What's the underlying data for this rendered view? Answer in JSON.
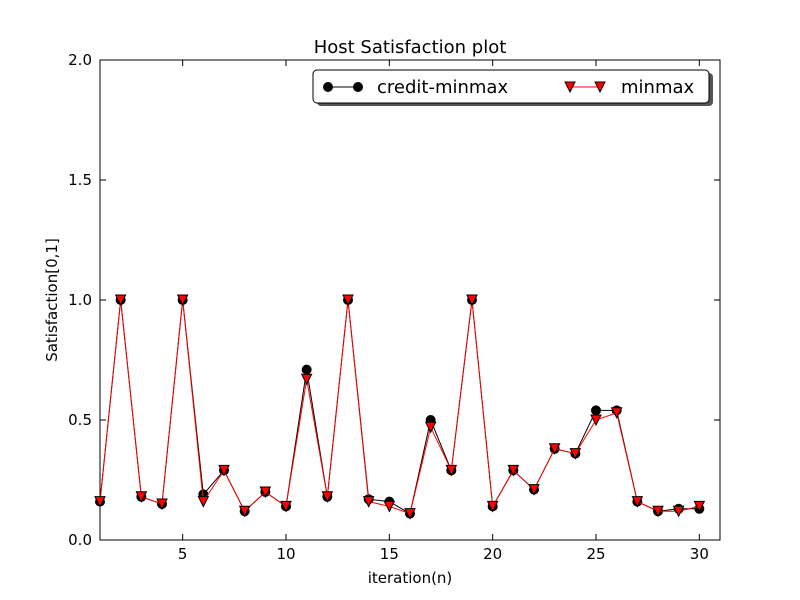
{
  "chart_data": {
    "type": "line",
    "title": "Host Satisfaction plot",
    "xlabel": "iteration(n)",
    "ylabel": "Satisfaction[0,1]",
    "xlim": [
      1,
      31
    ],
    "ylim": [
      0,
      2.0
    ],
    "xticks": [
      5,
      10,
      15,
      20,
      25,
      30
    ],
    "xtick_labels": [
      "5",
      "10",
      "15",
      "20",
      "25",
      "30"
    ],
    "yticks": [
      0.0,
      0.5,
      1.0,
      1.5,
      2.0
    ],
    "ytick_labels": [
      "0.0",
      "0.5",
      "1.0",
      "1.5",
      "2.0"
    ],
    "grid": false,
    "legend_position": "top-right",
    "x": [
      1,
      2,
      3,
      4,
      5,
      6,
      7,
      8,
      9,
      10,
      11,
      12,
      13,
      14,
      15,
      16,
      17,
      18,
      19,
      20,
      21,
      22,
      23,
      24,
      25,
      26,
      27,
      28,
      29,
      30
    ],
    "series": [
      {
        "name": "credit-minmax",
        "color": "#000000",
        "marker": "circle",
        "values": [
          0.16,
          1.0,
          0.18,
          0.15,
          1.0,
          0.19,
          0.29,
          0.12,
          0.2,
          0.14,
          0.71,
          0.18,
          1.0,
          0.17,
          0.16,
          0.11,
          0.5,
          0.29,
          1.0,
          0.14,
          0.29,
          0.21,
          0.38,
          0.36,
          0.54,
          0.54,
          0.16,
          0.12,
          0.13,
          0.13
        ]
      },
      {
        "name": "minmax",
        "color": "#ff0000",
        "marker": "triangle-down",
        "values": [
          0.16,
          1.0,
          0.18,
          0.15,
          1.0,
          0.16,
          0.29,
          0.12,
          0.2,
          0.14,
          0.67,
          0.18,
          1.0,
          0.16,
          0.14,
          0.11,
          0.47,
          0.29,
          1.0,
          0.14,
          0.29,
          0.21,
          0.38,
          0.36,
          0.5,
          0.53,
          0.16,
          0.12,
          0.12,
          0.14
        ]
      }
    ]
  }
}
